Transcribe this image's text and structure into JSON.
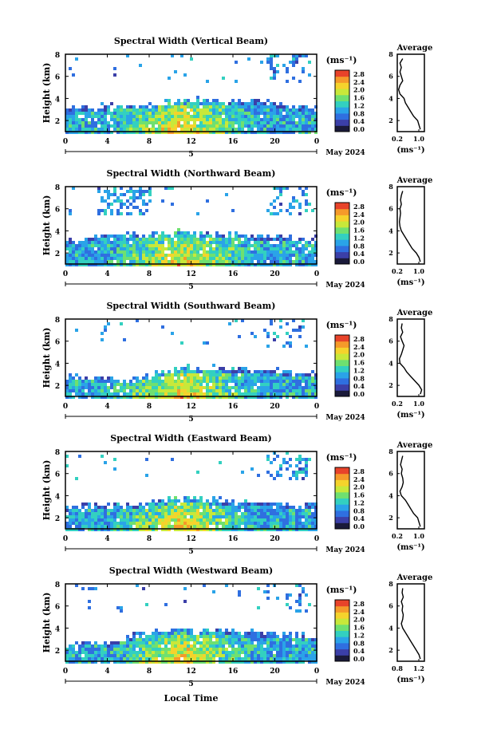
{
  "figure": {
    "xlabel": "Local Time",
    "date_label": "May 2024",
    "day_label": "5"
  },
  "colorbar": {
    "unit": "(ms⁻¹)",
    "ticks": [
      "2.8",
      "2.4",
      "2.0",
      "1.6",
      "1.2",
      "0.8",
      "0.4",
      "0.0"
    ],
    "colors": [
      "#1a1a3a",
      "#3b3fa8",
      "#2f6fe0",
      "#2aa3e8",
      "#33d0c0",
      "#6fe070",
      "#c8e83a",
      "#f5d32c",
      "#f59a2a",
      "#e8432a"
    ]
  },
  "chart_data": [
    {
      "type": "heatmap",
      "title": "Spectral Width (Vertical Beam)",
      "ylabel": "Height (km)",
      "ylim": [
        1,
        8
      ],
      "x_ticks": [
        "0",
        "4",
        "8",
        "12",
        "16",
        "20",
        "0"
      ],
      "y_ticks": [
        "2",
        "4",
        "6",
        "8"
      ],
      "top_of_main_layer_km": [
        3.1,
        3.2,
        3.3,
        3.4,
        3.6,
        3.7,
        3.9,
        3.9,
        3.8,
        3.8,
        3.6,
        3.3,
        3.1
      ],
      "profile": {
        "title": "Average",
        "xlabel": "(ms⁻¹)",
        "x_ticks": [
          "0.2",
          "1.0"
        ],
        "xlim": [
          0.2,
          1.2
        ],
        "y_ticks": [
          "2",
          "4",
          "6",
          "8"
        ],
        "height_km": [
          1.2,
          1.6,
          2.0,
          2.4,
          2.8,
          3.2,
          3.6,
          4.0,
          4.4,
          4.8,
          5.2,
          5.6,
          6.0,
          6.4,
          6.8,
          7.2,
          7.6
        ],
        "width": [
          1.05,
          1.0,
          0.95,
          0.8,
          0.7,
          0.6,
          0.5,
          0.45,
          0.3,
          0.25,
          0.3,
          0.4,
          0.35,
          0.3,
          0.35,
          0.3,
          0.4
        ]
      }
    },
    {
      "type": "heatmap",
      "title": "Spectral Width (Northward Beam)",
      "ylabel": "Height (km)",
      "ylim": [
        1,
        8
      ],
      "x_ticks": [
        "0",
        "4",
        "8",
        "12",
        "16",
        "20",
        "0"
      ],
      "y_ticks": [
        "2",
        "4",
        "6",
        "8"
      ],
      "top_of_main_layer_km": [
        3.2,
        3.5,
        3.9,
        3.6,
        3.8,
        3.9,
        3.8,
        3.8,
        3.7,
        3.6,
        3.5,
        3.4,
        3.3
      ],
      "profile": {
        "title": "Average",
        "xlabel": "(ms⁻¹)",
        "x_ticks": [
          "0.2",
          "1.0"
        ],
        "xlim": [
          0.2,
          1.2
        ],
        "y_ticks": [
          "2",
          "4",
          "6",
          "8"
        ],
        "height_km": [
          1.2,
          1.6,
          2.0,
          2.4,
          2.8,
          3.2,
          3.6,
          4.0,
          4.4,
          4.8,
          5.2,
          5.6,
          6.0,
          6.4,
          6.8,
          7.2,
          7.6
        ],
        "width": [
          1.05,
          1.0,
          0.9,
          0.75,
          0.65,
          0.55,
          0.45,
          0.35,
          0.3,
          0.28,
          0.3,
          0.32,
          0.3,
          0.35,
          0.32,
          0.35,
          0.4
        ]
      }
    },
    {
      "type": "heatmap",
      "title": "Spectral Width (Southward Beam)",
      "ylabel": "Height (km)",
      "ylim": [
        1,
        8
      ],
      "x_ticks": [
        "0",
        "4",
        "8",
        "12",
        "16",
        "20",
        "0"
      ],
      "y_ticks": [
        "2",
        "4",
        "6",
        "8"
      ],
      "top_of_main_layer_km": [
        2.7,
        2.8,
        2.6,
        2.5,
        3.0,
        3.5,
        3.6,
        3.6,
        3.5,
        3.4,
        3.3,
        3.2,
        3.0
      ],
      "profile": {
        "title": "Average",
        "xlabel": "(ms⁻¹)",
        "x_ticks": [
          "0.2",
          "1.0"
        ],
        "xlim": [
          0.2,
          1.2
        ],
        "y_ticks": [
          "2",
          "4",
          "6",
          "8"
        ],
        "height_km": [
          1.2,
          1.6,
          2.0,
          2.4,
          2.8,
          3.2,
          3.6,
          4.0,
          4.4,
          4.8,
          5.2,
          5.6,
          6.0,
          6.4,
          6.8,
          7.2,
          7.6
        ],
        "width": [
          1.05,
          1.1,
          1.0,
          0.85,
          0.7,
          0.55,
          0.45,
          0.3,
          0.28,
          0.35,
          0.4,
          0.45,
          0.38,
          0.32,
          0.4,
          0.35,
          0.38
        ]
      }
    },
    {
      "type": "heatmap",
      "title": "Spectral Width (Eastward Beam)",
      "ylabel": "Height (km)",
      "ylim": [
        1,
        8
      ],
      "x_ticks": [
        "0",
        "4",
        "8",
        "12",
        "16",
        "20",
        "0"
      ],
      "y_ticks": [
        "2",
        "4",
        "6",
        "8"
      ],
      "top_of_main_layer_km": [
        2.9,
        3.1,
        3.3,
        3.2,
        3.4,
        3.7,
        3.8,
        3.6,
        3.5,
        3.4,
        3.3,
        3.2,
        3.1
      ],
      "profile": {
        "title": "Average",
        "xlabel": "(ms⁻¹)",
        "x_ticks": [
          "0.2",
          "1.0"
        ],
        "xlim": [
          0.2,
          1.2
        ],
        "y_ticks": [
          "2",
          "4",
          "6",
          "8"
        ],
        "height_km": [
          1.2,
          1.6,
          2.0,
          2.4,
          2.8,
          3.2,
          3.6,
          4.0,
          4.4,
          4.8,
          5.2,
          5.6,
          6.0,
          6.4,
          6.8,
          7.2,
          7.6
        ],
        "width": [
          1.05,
          1.0,
          0.95,
          0.8,
          0.7,
          0.6,
          0.5,
          0.35,
          0.3,
          0.38,
          0.42,
          0.4,
          0.35,
          0.38,
          0.32,
          0.36,
          0.4
        ]
      }
    },
    {
      "type": "heatmap",
      "title": "Spectral Width (Westward Beam)",
      "ylabel": "Height (km)",
      "ylim": [
        1,
        8
      ],
      "x_ticks": [
        "0",
        "4",
        "8",
        "12",
        "16",
        "20",
        "0"
      ],
      "y_ticks": [
        "2",
        "4",
        "6",
        "8"
      ],
      "top_of_main_layer_km": [
        2.6,
        2.7,
        2.6,
        3.2,
        3.6,
        3.8,
        3.9,
        3.8,
        3.7,
        3.6,
        3.5,
        3.4,
        3.2
      ],
      "profile": {
        "title": "Average",
        "xlabel": "(ms⁻¹)",
        "x_ticks": [
          "0.8",
          "1.2"
        ],
        "xlim": [
          0.4,
          1.4
        ],
        "y_ticks": [
          "2",
          "4",
          "6",
          "8"
        ],
        "height_km": [
          1.2,
          1.6,
          2.0,
          2.4,
          2.8,
          3.2,
          3.6,
          4.0,
          4.4,
          4.8,
          5.2,
          5.6,
          6.0,
          6.4,
          6.8,
          7.2,
          7.6
        ],
        "width": [
          1.25,
          1.2,
          1.1,
          1.0,
          0.9,
          0.8,
          0.7,
          0.6,
          0.55,
          0.6,
          0.62,
          0.58,
          0.6,
          0.55,
          0.62,
          0.58,
          0.6
        ]
      }
    }
  ]
}
